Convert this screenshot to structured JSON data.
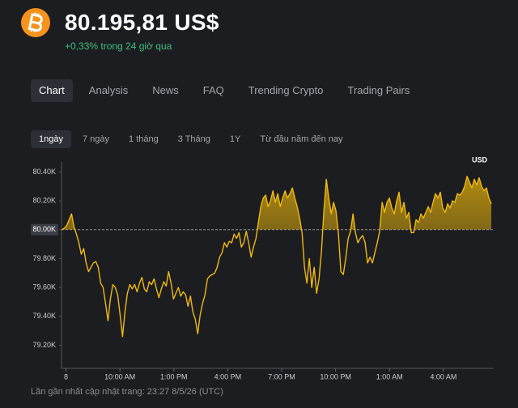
{
  "header": {
    "price": "80.195,81 US$",
    "change": "+0,33% trong 24 giờ qua"
  },
  "tabs": [
    "Chart",
    "Analysis",
    "News",
    "FAQ",
    "Trending Crypto",
    "Trading Pairs"
  ],
  "selected_tab": 0,
  "ranges": [
    "1ngày",
    "7 ngày",
    "1 tháng",
    "3 Tháng",
    "1Y",
    "Từ đầu năm đến nay"
  ],
  "selected_range": 0,
  "chart_data": {
    "type": "line",
    "unit_label": "USD",
    "color": "#f0b90b",
    "baseline": 80000,
    "xlim": [
      6.75,
      30.8
    ],
    "xticks": [
      {
        "value": 7,
        "label": "8"
      },
      {
        "value": 10,
        "label": "10:00 AM"
      },
      {
        "value": 13,
        "label": "1:00 PM"
      },
      {
        "value": 16,
        "label": "4:00 PM"
      },
      {
        "value": 19,
        "label": "7:00 PM"
      },
      {
        "value": 22,
        "label": "10:00 PM"
      },
      {
        "value": 25,
        "label": "1:00 AM"
      },
      {
        "value": 28,
        "label": "4:00 AM"
      }
    ],
    "ylim": [
      79040,
      80470
    ],
    "yticks": [
      {
        "value": 80400,
        "label": "80.40K"
      },
      {
        "value": 80200,
        "label": "80.20K"
      },
      {
        "value": 80000,
        "label": "80.00K"
      },
      {
        "value": 79800,
        "label": "79.80K"
      },
      {
        "value": 79600,
        "label": "79.60K"
      },
      {
        "value": 79400,
        "label": "79.40K"
      },
      {
        "value": 79200,
        "label": "79.20K"
      }
    ],
    "x": [
      6.77,
      6.905,
      7.04,
      7.175,
      7.31,
      7.445,
      7.58,
      7.715,
      7.85,
      7.985,
      8.12,
      8.255,
      8.39,
      8.525,
      8.66,
      8.795,
      8.93,
      9.065,
      9.2,
      9.335,
      9.47,
      9.605,
      9.74,
      9.875,
      10.01,
      10.145,
      10.28,
      10.415,
      10.55,
      10.685,
      10.82,
      10.955,
      11.09,
      11.225,
      11.36,
      11.495,
      11.63,
      11.765,
      11.9,
      12.035,
      12.17,
      12.305,
      12.44,
      12.575,
      12.71,
      12.845,
      12.98,
      13.115,
      13.25,
      13.385,
      13.52,
      13.655,
      13.79,
      13.925,
      14.06,
      14.195,
      14.33,
      14.465,
      14.6,
      14.735,
      14.87,
      15.005,
      15.14,
      15.275,
      15.41,
      15.545,
      15.68,
      15.815,
      15.95,
      16.085,
      16.22,
      16.355,
      16.49,
      16.625,
      16.76,
      16.895,
      17.03,
      17.165,
      17.3,
      17.435,
      17.57,
      17.705,
      17.84,
      17.975,
      18.11,
      18.245,
      18.38,
      18.515,
      18.65,
      18.785,
      18.92,
      19.055,
      19.19,
      19.325,
      19.46,
      19.595,
      19.73,
      19.865,
      20.0,
      20.135,
      20.27,
      20.405,
      20.54,
      20.675,
      20.81,
      20.945,
      21.08,
      21.215,
      21.35,
      21.485,
      21.62,
      21.755,
      21.89,
      22.025,
      22.16,
      22.295,
      22.43,
      22.565,
      22.7,
      22.835,
      22.97,
      23.105,
      23.24,
      23.375,
      23.51,
      23.645,
      23.78,
      23.915,
      24.05,
      24.185,
      24.32,
      24.455,
      24.59,
      24.725,
      24.86,
      24.995,
      25.13,
      25.265,
      25.4,
      25.535,
      25.67,
      25.805,
      25.94,
      26.075,
      26.21,
      26.345,
      26.48,
      26.615,
      26.75,
      26.885,
      27.02,
      27.155,
      27.29,
      27.425,
      27.56,
      27.695,
      27.83,
      27.965,
      28.1,
      28.235,
      28.37,
      28.505,
      28.64,
      28.775,
      28.91,
      29.045,
      29.18,
      29.315,
      29.45,
      29.585,
      29.72,
      29.855,
      29.99,
      30.125,
      30.26,
      30.395,
      30.53,
      30.665
    ],
    "values": [
      80000,
      80010,
      80030,
      80070,
      80110,
      80020,
      79970,
      79910,
      79830,
      79870,
      79770,
      79710,
      79740,
      79770,
      79780,
      79740,
      79630,
      79600,
      79490,
      79370,
      79520,
      79620,
      79600,
      79550,
      79410,
      79260,
      79430,
      79560,
      79620,
      79590,
      79620,
      79570,
      79630,
      79670,
      79590,
      79570,
      79640,
      79620,
      79660,
      79590,
      79530,
      79590,
      79640,
      79610,
      79710,
      79630,
      79520,
      79560,
      79600,
      79540,
      79570,
      79550,
      79470,
      79540,
      79430,
      79380,
      79280,
      79410,
      79490,
      79550,
      79660,
      79680,
      79690,
      79700,
      79740,
      79810,
      79840,
      79910,
      79880,
      79920,
      79910,
      79970,
      79940,
      79980,
      79880,
      79910,
      79990,
      79910,
      79810,
      79880,
      79940,
      80050,
      80160,
      80220,
      80240,
      80160,
      80200,
      80270,
      80190,
      80250,
      80160,
      80220,
      80270,
      80220,
      80250,
      80290,
      80220,
      80160,
      80080,
      79980,
      79740,
      79630,
      79800,
      79600,
      79740,
      79560,
      79660,
      79850,
      80130,
      80350,
      80220,
      80110,
      80190,
      80130,
      79970,
      79710,
      79690,
      79800,
      79940,
      79990,
      80110,
      79980,
      79910,
      79940,
      79960,
      79910,
      79770,
      79810,
      79770,
      79840,
      79910,
      79990,
      80190,
      80120,
      80190,
      80220,
      80150,
      80110,
      80200,
      80260,
      80120,
      80190,
      80080,
      80120,
      79980,
      79980,
      80070,
      80050,
      80110,
      80080,
      80120,
      80160,
      80120,
      80190,
      80250,
      80220,
      80260,
      80150,
      80120,
      80180,
      80150,
      80200,
      80190,
      80250,
      80240,
      80260,
      80300,
      80370,
      80330,
      80290,
      80350,
      80310,
      80360,
      80300,
      80270,
      80290,
      80220,
      80180
    ]
  },
  "footer": "Lần gần nhất cập nhật trang: 23:27 8/5/26 (UTC)"
}
